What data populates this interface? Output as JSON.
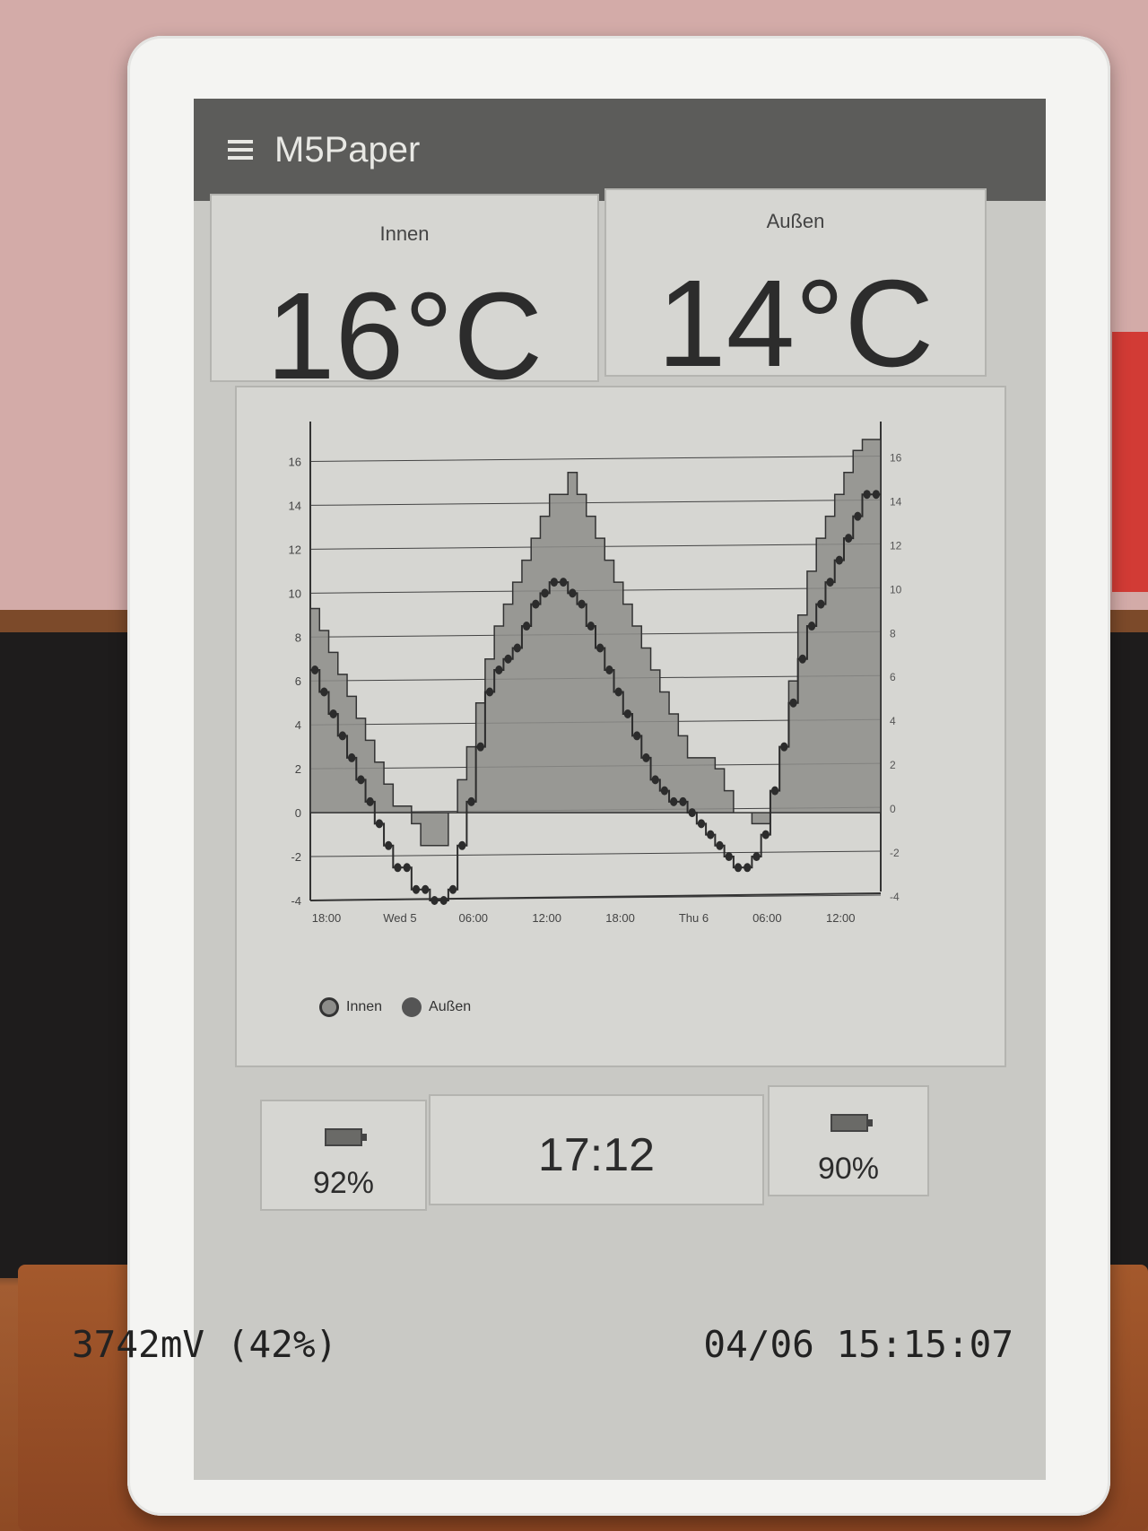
{
  "app": {
    "title": "M5Paper"
  },
  "temps": {
    "inside": {
      "label": "Innen",
      "value": "16°C"
    },
    "outside": {
      "label": "Außen",
      "value": "14°C"
    }
  },
  "chart_data": {
    "type": "area",
    "x_tick_labels": [
      "18:00",
      "Wed 5",
      "06:00",
      "12:00",
      "18:00",
      "Thu 6",
      "06:00",
      "12:00"
    ],
    "y_left_ticks": [
      "-4",
      "-2",
      "0",
      "2",
      "4",
      "6",
      "8",
      "10",
      "12",
      "14",
      "16"
    ],
    "y_right_ticks": [
      "-4",
      "-2",
      "0",
      "2",
      "4",
      "6",
      "8",
      "10",
      "12",
      "14",
      "16"
    ],
    "ylim": [
      -4,
      17
    ],
    "grid": true,
    "legend_position": "bottom-left",
    "series": [
      {
        "name": "Innen",
        "style": "step-area",
        "color": "#8d8d8a",
        "values": [
          9.3,
          8.3,
          7.3,
          6.3,
          5.3,
          4.3,
          3.3,
          2.3,
          1.3,
          0.3,
          0.3,
          -0.5,
          -1.5,
          -1.5,
          -1.5,
          0.0,
          1.5,
          3.0,
          5.0,
          7.0,
          8.5,
          9.5,
          10.5,
          11.5,
          12.5,
          13.5,
          14.5,
          14.5,
          15.5,
          14.5,
          13.5,
          12.5,
          11.5,
          10.5,
          9.5,
          8.5,
          7.5,
          6.5,
          5.5,
          4.5,
          3.5,
          2.5,
          2.5,
          2.5,
          2.0,
          1.0,
          0.0,
          0.0,
          -0.5,
          -0.5,
          1.0,
          3.0,
          6.0,
          9.0,
          11.0,
          12.5,
          13.5,
          14.5,
          15.5,
          16.5,
          17.0,
          17.0
        ]
      },
      {
        "name": "Außen",
        "style": "step-markers",
        "color": "#2c2c2c",
        "values": [
          6.5,
          5.5,
          4.5,
          3.5,
          2.5,
          1.5,
          0.5,
          -0.5,
          -1.5,
          -2.5,
          -2.5,
          -3.5,
          -3.5,
          -4.0,
          -4.0,
          -3.5,
          -1.5,
          0.5,
          3.0,
          5.5,
          6.5,
          7.0,
          7.5,
          8.5,
          9.5,
          10.0,
          10.5,
          10.5,
          10.0,
          9.5,
          8.5,
          7.5,
          6.5,
          5.5,
          4.5,
          3.5,
          2.5,
          1.5,
          1.0,
          0.5,
          0.5,
          0.0,
          -0.5,
          -1.0,
          -1.5,
          -2.0,
          -2.5,
          -2.5,
          -2.0,
          -1.0,
          1.0,
          3.0,
          5.0,
          7.0,
          8.5,
          9.5,
          10.5,
          11.5,
          12.5,
          13.5,
          14.5,
          14.5
        ]
      }
    ]
  },
  "footer": {
    "battery_left": "92%",
    "battery_left_level": 0.92,
    "clock": "17:12",
    "battery_right": "90%",
    "battery_right_level": 0.9
  },
  "status_bar": {
    "voltage": "3742mV (42%)",
    "datetime": "04/06 15:15:07"
  },
  "icons": {
    "menu": "hamburger-menu-icon",
    "battery": "battery-icon"
  }
}
